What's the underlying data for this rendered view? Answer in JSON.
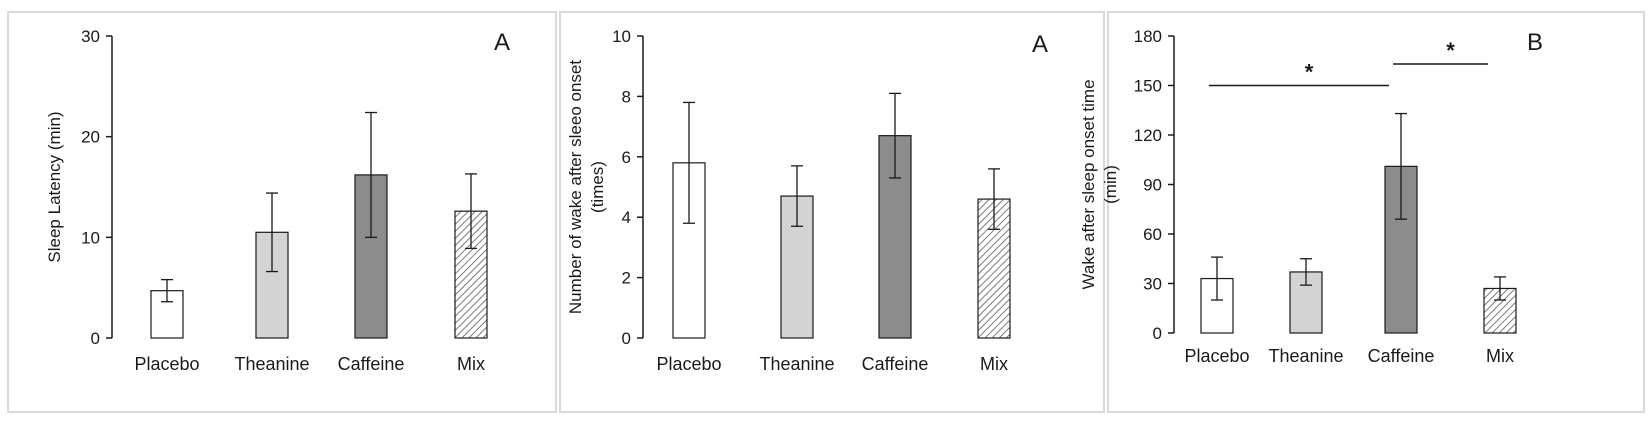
{
  "chart_data": [
    {
      "type": "bar",
      "panel_label": "A",
      "title": "",
      "xlabel": "",
      "ylabel": "Sleep Latency (min)",
      "categories": [
        "Placebo",
        "Theanine",
        "Caffeine",
        "Mix"
      ],
      "values": [
        4.7,
        10.5,
        16.2,
        12.6
      ],
      "errors": [
        1.1,
        3.9,
        6.2,
        3.7
      ],
      "ylim": [
        0,
        30
      ],
      "yticks": [
        0,
        10,
        20,
        30
      ],
      "annotations": []
    },
    {
      "type": "bar",
      "panel_label": "A",
      "title": "",
      "xlabel": "",
      "ylabel_lines": [
        "Number of wake after sleeo onset",
        "(times)"
      ],
      "categories": [
        "Placebo",
        "Theanine",
        "Caffeine",
        "Mix"
      ],
      "values": [
        5.8,
        4.7,
        6.7,
        4.6
      ],
      "errors": [
        2.0,
        1.0,
        1.4,
        1.0
      ],
      "ylim": [
        0,
        10
      ],
      "yticks": [
        0,
        2,
        4,
        6,
        8,
        10
      ],
      "annotations": []
    },
    {
      "type": "bar",
      "panel_label": "B",
      "title": "",
      "xlabel": "",
      "ylabel_lines": [
        "Wake after sleep onset time",
        "(min)"
      ],
      "categories": [
        "Placebo",
        "Theanine",
        "Caffeine",
        "Mix"
      ],
      "values": [
        33,
        37,
        101,
        27
      ],
      "errors": [
        13,
        8,
        32,
        7
      ],
      "ylim": [
        0,
        180
      ],
      "yticks": [
        0,
        30,
        60,
        90,
        120,
        150,
        180
      ],
      "annotations": [
        {
          "text": "*",
          "from": 0,
          "to": 2,
          "y": 150
        },
        {
          "text": "*",
          "from": 2,
          "to": 3,
          "y": 163
        }
      ]
    }
  ],
  "fills": [
    "#ffffff",
    "#d3d3d3",
    "#8c8c8c",
    "hatch"
  ]
}
